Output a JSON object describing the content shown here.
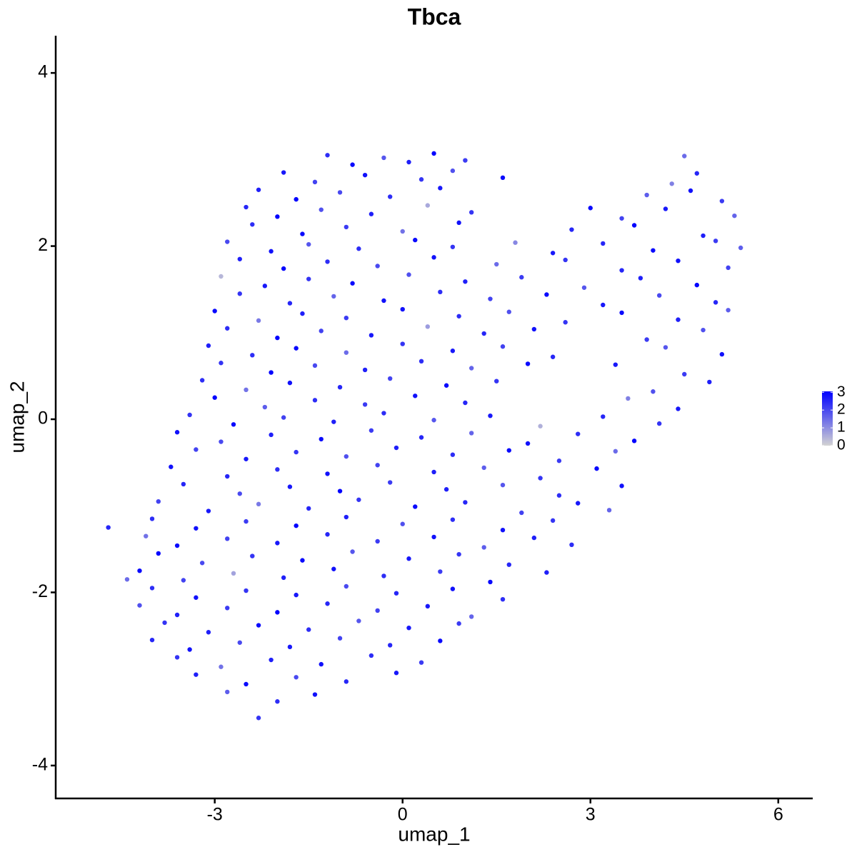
{
  "chart_data": {
    "type": "scatter",
    "title": "Tbca",
    "xlabel": "umap_1",
    "ylabel": "umap_2",
    "xlim": [
      -5.54,
      6.55
    ],
    "ylim": [
      -4.38,
      4.43
    ],
    "xticks": [
      -3,
      0,
      3,
      6
    ],
    "yticks": [
      -4,
      -2,
      0,
      2,
      4
    ],
    "x": [
      -1.2,
      -0.8,
      -0.3,
      0.1,
      0.5,
      1.0,
      4.5,
      -1.9,
      -1.4,
      -0.6,
      0.3,
      0.8,
      1.6,
      4.7,
      4.3,
      -2.3,
      -1.7,
      -1.0,
      -0.2,
      0.6,
      3.9,
      4.6,
      5.1,
      -2.5,
      -2.0,
      -1.3,
      -0.5,
      0.4,
      1.1,
      3.0,
      3.5,
      4.2,
      5.3,
      -2.4,
      -1.6,
      -0.9,
      0.0,
      0.9,
      2.7,
      3.7,
      4.8,
      -2.8,
      -2.1,
      -1.5,
      -0.7,
      0.2,
      0.8,
      1.8,
      2.4,
      3.2,
      4.0,
      5.0,
      5.4,
      -2.6,
      -1.9,
      -1.2,
      -0.4,
      0.5,
      1.5,
      2.6,
      3.5,
      4.4,
      5.2,
      -2.9,
      -2.2,
      -1.5,
      -0.8,
      0.1,
      1.0,
      1.9,
      2.9,
      3.8,
      4.7,
      -2.6,
      -1.8,
      -1.1,
      -0.3,
      0.6,
      1.4,
      2.3,
      3.2,
      4.1,
      5.0,
      -3.0,
      -2.3,
      -1.6,
      -0.9,
      0.0,
      0.9,
      1.7,
      2.6,
      3.5,
      4.4,
      5.2,
      -2.8,
      -2.0,
      -1.3,
      -0.5,
      0.4,
      1.3,
      2.1,
      3.9,
      4.8,
      -3.1,
      -2.4,
      -1.7,
      -0.9,
      0.0,
      0.8,
      1.6,
      2.4,
      4.2,
      5.1,
      -2.9,
      -2.1,
      -1.4,
      -0.6,
      0.3,
      1.1,
      2.0,
      4.5,
      3.4,
      -3.2,
      -2.5,
      -1.8,
      -1.0,
      -0.2,
      0.7,
      1.5,
      4.0,
      4.9,
      -3.0,
      -2.2,
      -1.4,
      -0.6,
      0.2,
      1.0,
      3.6,
      4.4,
      -3.4,
      -2.7,
      -1.9,
      -1.1,
      -0.3,
      0.5,
      1.4,
      2.2,
      3.2,
      4.1,
      -3.6,
      -2.9,
      -2.1,
      -1.3,
      -0.5,
      0.3,
      1.1,
      2.0,
      2.8,
      3.7,
      -3.3,
      -2.5,
      -1.7,
      -0.9,
      -0.1,
      0.8,
      1.7,
      2.5,
      3.4,
      -3.7,
      -2.8,
      -2.0,
      -1.2,
      -0.4,
      0.5,
      1.3,
      2.2,
      3.1,
      -3.5,
      -2.6,
      -1.8,
      -1.0,
      -0.2,
      0.7,
      1.6,
      2.5,
      3.5,
      -3.9,
      -3.1,
      -2.3,
      -1.5,
      -0.7,
      0.2,
      1.0,
      1.9,
      2.8,
      3.3,
      -4.0,
      -3.3,
      -2.5,
      -1.7,
      -0.9,
      0.0,
      0.8,
      1.6,
      2.4,
      -4.7,
      -4.1,
      -3.6,
      -2.8,
      -2.0,
      -1.2,
      -0.4,
      0.5,
      1.3,
      2.1,
      2.7,
      -3.9,
      -3.2,
      -2.4,
      -1.6,
      -0.8,
      0.1,
      0.9,
      1.7,
      -4.2,
      -3.5,
      -2.7,
      -1.9,
      -1.1,
      -0.3,
      0.6,
      1.4,
      2.3,
      -4.4,
      -4.0,
      -3.3,
      -2.5,
      -1.7,
      -0.9,
      -0.1,
      0.8,
      1.6,
      -4.2,
      -3.6,
      -2.8,
      -2.0,
      -1.2,
      -0.4,
      0.4,
      1.1,
      -3.8,
      -3.1,
      -2.3,
      -1.5,
      -0.7,
      0.1,
      0.9,
      -4.0,
      -3.4,
      -2.6,
      -1.8,
      -1.0,
      -0.2,
      0.6,
      -3.6,
      -2.9,
      -2.1,
      -1.3,
      -0.5,
      0.3,
      -3.3,
      -2.5,
      -1.7,
      -0.9,
      -0.1,
      -2.8,
      -2.0,
      -1.4,
      -2.3
    ],
    "y": [
      3.05,
      2.94,
      3.02,
      2.97,
      3.07,
      2.99,
      3.04,
      2.85,
      2.74,
      2.82,
      2.77,
      2.87,
      2.79,
      2.84,
      2.72,
      2.65,
      2.54,
      2.62,
      2.57,
      2.67,
      2.59,
      2.64,
      2.52,
      2.45,
      2.34,
      2.42,
      2.37,
      2.47,
      2.39,
      2.44,
      2.32,
      2.43,
      2.35,
      2.25,
      2.14,
      2.22,
      2.17,
      2.27,
      2.19,
      2.24,
      2.12,
      2.05,
      1.94,
      2.02,
      1.97,
      2.07,
      1.99,
      2.04,
      1.92,
      2.03,
      1.95,
      2.06,
      1.98,
      1.85,
      1.74,
      1.82,
      1.77,
      1.87,
      1.79,
      1.84,
      1.72,
      1.83,
      1.75,
      1.65,
      1.54,
      1.62,
      1.57,
      1.67,
      1.59,
      1.64,
      1.52,
      1.63,
      1.55,
      1.45,
      1.34,
      1.42,
      1.37,
      1.47,
      1.39,
      1.44,
      1.32,
      1.43,
      1.35,
      1.25,
      1.14,
      1.22,
      1.17,
      1.27,
      1.19,
      1.24,
      1.12,
      1.23,
      1.15,
      1.26,
      1.05,
      0.94,
      1.02,
      0.97,
      1.07,
      0.99,
      1.04,
      0.92,
      1.03,
      0.85,
      0.74,
      0.82,
      0.77,
      0.87,
      0.79,
      0.84,
      0.72,
      0.83,
      0.75,
      0.65,
      0.54,
      0.62,
      0.57,
      0.67,
      0.59,
      0.64,
      0.52,
      0.63,
      0.45,
      0.34,
      0.42,
      0.37,
      0.47,
      0.39,
      0.44,
      0.32,
      0.43,
      0.25,
      0.14,
      0.22,
      0.17,
      0.27,
      0.19,
      0.24,
      0.12,
      0.05,
      -0.06,
      0.02,
      -0.03,
      0.07,
      -0.01,
      0.04,
      -0.08,
      0.03,
      -0.05,
      -0.15,
      -0.26,
      -0.18,
      -0.23,
      -0.13,
      -0.21,
      -0.16,
      -0.28,
      -0.17,
      -0.25,
      -0.35,
      -0.46,
      -0.38,
      -0.43,
      -0.33,
      -0.41,
      -0.36,
      -0.48,
      -0.37,
      -0.55,
      -0.66,
      -0.58,
      -0.63,
      -0.53,
      -0.61,
      -0.56,
      -0.68,
      -0.57,
      -0.75,
      -0.86,
      -0.78,
      -0.83,
      -0.73,
      -0.81,
      -0.76,
      -0.88,
      -0.77,
      -0.95,
      -1.06,
      -0.98,
      -1.03,
      -0.93,
      -1.01,
      -0.96,
      -1.08,
      -0.97,
      -1.05,
      -1.15,
      -1.26,
      -1.18,
      -1.23,
      -1.13,
      -1.21,
      -1.16,
      -1.28,
      -1.17,
      -1.25,
      -1.35,
      -1.46,
      -1.38,
      -1.43,
      -1.33,
      -1.41,
      -1.36,
      -1.48,
      -1.37,
      -1.45,
      -1.55,
      -1.66,
      -1.58,
      -1.63,
      -1.53,
      -1.61,
      -1.56,
      -1.68,
      -1.75,
      -1.86,
      -1.78,
      -1.83,
      -1.73,
      -1.81,
      -1.76,
      -1.88,
      -1.77,
      -1.85,
      -1.95,
      -2.06,
      -1.98,
      -2.03,
      -1.93,
      -2.01,
      -1.96,
      -2.08,
      -2.15,
      -2.26,
      -2.18,
      -2.23,
      -2.13,
      -2.21,
      -2.16,
      -2.28,
      -2.35,
      -2.46,
      -2.38,
      -2.43,
      -2.33,
      -2.41,
      -2.36,
      -2.55,
      -2.66,
      -2.58,
      -2.63,
      -2.53,
      -2.61,
      -2.56,
      -2.75,
      -2.86,
      -2.78,
      -2.83,
      -2.73,
      -2.81,
      -2.95,
      -3.06,
      -2.98,
      -3.03,
      -2.93,
      -3.15,
      -3.26,
      -3.18,
      -3.45
    ],
    "values": [
      2.4,
      2.9,
      1.8,
      2.6,
      3.0,
      2.2,
      1.5,
      2.7,
      2.1,
      2.8,
      2.3,
      1.9,
      2.9,
      2.5,
      1.2,
      2.6,
      3.0,
      2.0,
      2.4,
      2.7,
      1.7,
      2.8,
      2.2,
      2.5,
      3.0,
      1.9,
      2.6,
      0.6,
      2.3,
      2.9,
      2.1,
      2.7,
      1.6,
      2.4,
      2.9,
      2.2,
      1.4,
      2.8,
      2.5,
      3.0,
      2.6,
      2.0,
      2.8,
      1.8,
      2.4,
      2.9,
      2.3,
      1.1,
      2.7,
      2.5,
      2.9,
      2.2,
      1.7,
      2.6,
      3.0,
      2.4,
      2.0,
      2.8,
      1.5,
      2.3,
      2.5,
      2.8,
      2.1,
      0.4,
      2.7,
      2.3,
      2.9,
      1.9,
      2.6,
      2.2,
      1.8,
      2.6,
      3.0,
      2.3,
      2.5,
      1.6,
      2.8,
      2.4,
      2.1,
      2.9,
      2.7,
      2.0,
      2.5,
      2.9,
      1.3,
      2.6,
      2.2,
      2.8,
      2.4,
      1.9,
      2.3,
      2.9,
      2.6,
      1.7,
      2.4,
      3.0,
      2.1,
      2.7,
      0.8,
      2.5,
      2.8,
      2.2,
      1.9,
      2.6,
      2.4,
      2.9,
      1.5,
      2.3,
      2.7,
      2.1,
      2.5,
      1.8,
      2.8,
      2.3,
      3.0,
      2.0,
      2.6,
      2.4,
      1.6,
      2.9,
      2.2,
      2.7,
      2.4,
      1.4,
      2.8,
      2.5,
      2.1,
      2.9,
      2.3,
      1.9,
      2.6,
      3.0,
      1.7,
      2.4,
      2.2,
      2.8,
      2.5,
      1.2,
      2.7,
      2.3,
      2.9,
      2.1,
      2.6,
      2.4,
      1.8,
      2.7,
      0.5,
      2.5,
      2.3,
      2.8,
      2.0,
      2.6,
      2.9,
      2.2,
      2.5,
      1.6,
      2.8,
      2.4,
      3.0,
      2.1,
      2.7,
      2.3,
      1.9,
      2.6,
      2.4,
      2.9,
      2.2,
      1.5,
      2.8,
      2.5,
      2.4,
      2.8,
      2.1,
      2.6,
      1.7,
      2.3,
      2.9,
      2.5,
      2.0,
      2.7,
      3.0,
      2.2,
      2.6,
      1.8,
      2.4,
      2.8,
      2.1,
      2.7,
      1.3,
      2.5,
      2.3,
      2.9,
      2.5,
      2.1,
      2.7,
      1.6,
      2.4,
      2.8,
      2.2,
      3.0,
      2.6,
      1.9,
      2.4,
      2.8,
      2.3,
      2.5,
      1.4,
      2.9,
      2.1,
      2.7,
      2.5,
      2.2,
      2.8,
      1.7,
      2.6,
      2.4,
      3.0,
      2.0,
      2.3,
      2.9,
      1.8,
      2.7,
      2.3,
      2.5,
      2.9,
      2.1,
      0.7,
      2.6,
      2.8,
      2.4,
      2.2,
      2.9,
      2.6,
      1.5,
      2.4,
      2.8,
      2.3,
      2.7,
      2.0,
      2.5,
      2.8,
      2.4,
      1.9,
      2.6,
      2.2,
      3.0,
      2.5,
      2.1,
      2.7,
      1.6,
      2.3,
      2.6,
      2.9,
      2.4,
      1.8,
      2.7,
      2.2,
      2.5,
      2.8,
      2.0,
      2.7,
      2.1,
      2.5,
      2.9,
      2.3,
      1.4,
      2.6,
      2.8,
      2.4,
      2.2,
      2.6,
      2.9,
      2.0,
      2.5,
      2.7,
      1.7,
      2.4,
      2.8,
      2.3
    ],
    "colorbar": {
      "lim": [
        0,
        3.05
      ],
      "ticks": [
        0,
        1,
        2,
        3
      ],
      "low": "#d3d3d3",
      "high": "#0000ff"
    }
  }
}
